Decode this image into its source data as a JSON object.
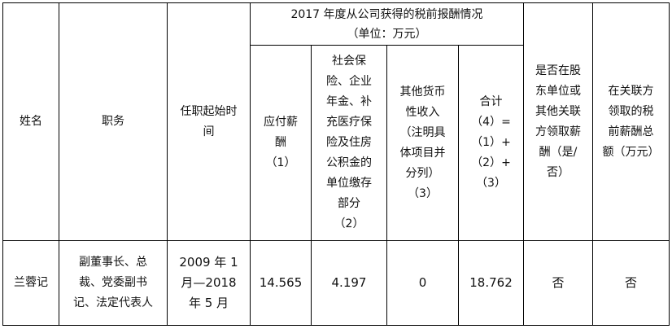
{
  "table": {
    "headers": {
      "name": "姓名",
      "position": "职务",
      "tenure": "任职起始时\n间",
      "group": "2017 年度从公司获得的税前报酬情况\n（单位：万元）",
      "payable": "应付薪\n酬\n（1）",
      "social": "社会保\n险、企业\n年金、补\n充医疗保\n险及住房\n公积金的\n单位缴存\n部分\n（2）",
      "other": "其他货币\n性收入\n（注明具\n体项目并\n分列）\n（3）",
      "total": "合计\n（4）=\n（1）+\n（2）+\n（3）",
      "shareholder": "是否在股\n东单位或\n其他关联\n方领取薪\n酬（是/\n否）",
      "related": "在关联方\n领取的税\n前薪酬总\n额（万元）"
    },
    "rows": [
      {
        "name": "兰蓉记",
        "position": "副董事长、总\n裁、党委副书\n记、法定代表人",
        "tenure": "2009 年 1\n月—2018\n年 5 月",
        "payable": "14.565",
        "social": "4.197",
        "other": "0",
        "total": "18.762",
        "shareholder": "否",
        "related": "否"
      }
    ]
  }
}
